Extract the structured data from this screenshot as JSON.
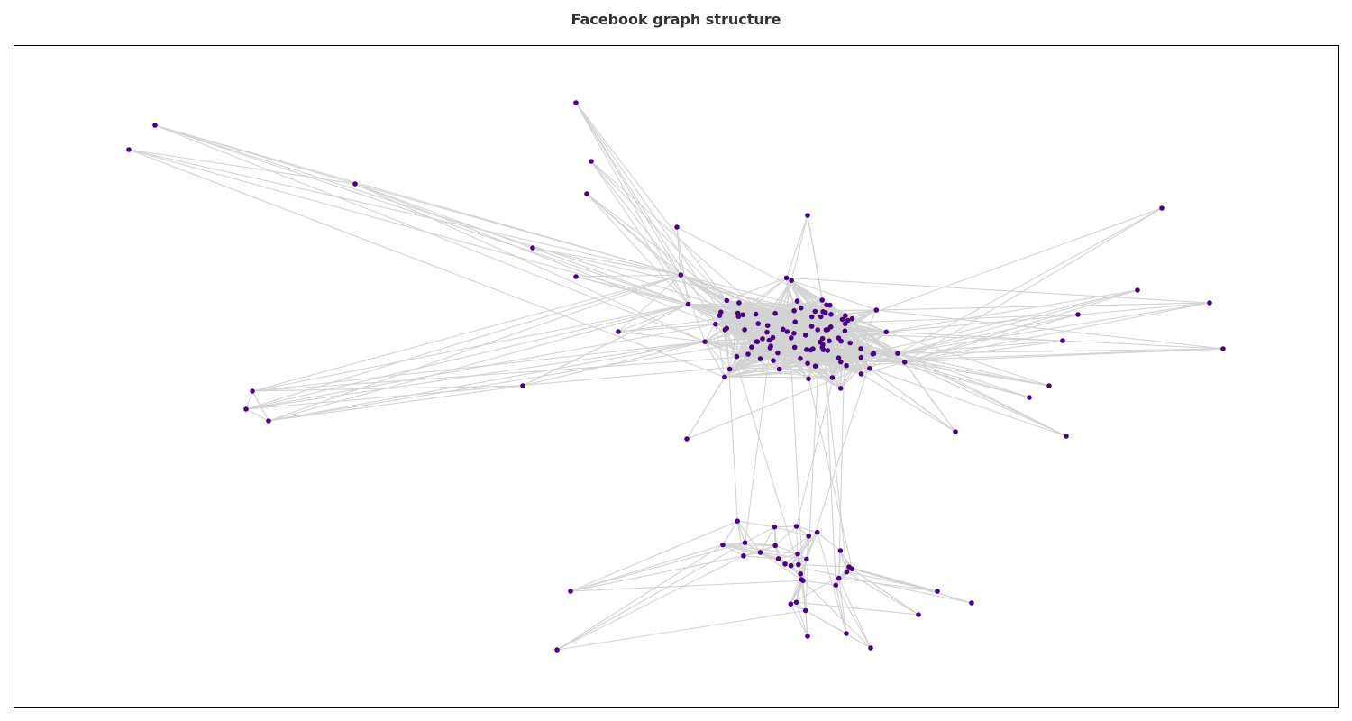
{
  "figure": {
    "title": "Facebook graph structure",
    "node_color": "#4b0082",
    "edge_color": "#d3d3d3",
    "frame_color": "#000000"
  },
  "chart_data": {
    "type": "network",
    "layout": "force-directed",
    "axes_visible": false,
    "node_count": 160,
    "seed": 7
  }
}
